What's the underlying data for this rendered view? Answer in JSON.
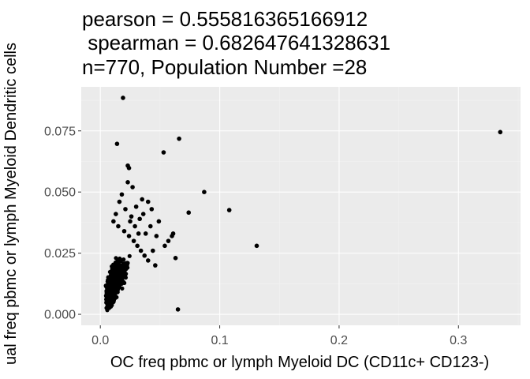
{
  "chart_data": {
    "type": "scatter",
    "title_lines": [
      "pearson = 0.555816365166912",
      " spearman = 0.682647641328631",
      "n=770, Population Number =28"
    ],
    "xlabel": "OC freq pbmc or lymph Myeloid DC (CD11c+ CD123-)",
    "ylabel": "ual freq pbmc or lymph Myeloid Dendritic cells",
    "xlim": [
      -0.016,
      0.352
    ],
    "ylim": [
      -0.0045,
      0.093
    ],
    "x_ticks": [
      0.0,
      0.1,
      0.2,
      0.3
    ],
    "x_tick_labels": [
      "0.0",
      "0.1",
      "0.2",
      "0.3"
    ],
    "y_ticks": [
      0.0,
      0.025,
      0.05,
      0.075
    ],
    "y_tick_labels": [
      "0.000",
      "0.025",
      "0.050",
      "0.075"
    ],
    "grid": true,
    "panel_color": "#ebebeb",
    "point_color": "#000000",
    "points": [
      [
        0.019,
        0.0885
      ],
      [
        0.335,
        0.0745
      ],
      [
        0.066,
        0.0718
      ],
      [
        0.014,
        0.0697
      ],
      [
        0.053,
        0.0662
      ],
      [
        0.023,
        0.0608
      ],
      [
        0.024,
        0.0598
      ],
      [
        0.087,
        0.05
      ],
      [
        0.108,
        0.0426
      ],
      [
        0.074,
        0.0416
      ],
      [
        0.131,
        0.028
      ],
      [
        0.065,
        0.002
      ],
      [
        0.023,
        0.054
      ],
      [
        0.027,
        0.052
      ],
      [
        0.035,
        0.047
      ],
      [
        0.04,
        0.046
      ],
      [
        0.03,
        0.044
      ],
      [
        0.043,
        0.043
      ],
      [
        0.049,
        0.038
      ],
      [
        0.061,
        0.033
      ],
      [
        0.063,
        0.023
      ],
      [
        0.054,
        0.028
      ],
      [
        0.057,
        0.03
      ],
      [
        0.06,
        0.032
      ],
      [
        0.047,
        0.032
      ],
      [
        0.042,
        0.036
      ],
      [
        0.036,
        0.041
      ],
      [
        0.033,
        0.039
      ],
      [
        0.018,
        0.049
      ],
      [
        0.016,
        0.046
      ],
      [
        0.021,
        0.043
      ],
      [
        0.026,
        0.04
      ],
      [
        0.013,
        0.041
      ],
      [
        0.011,
        0.038
      ],
      [
        0.015,
        0.036
      ],
      [
        0.02,
        0.034
      ],
      [
        0.024,
        0.032
      ],
      [
        0.028,
        0.03
      ],
      [
        0.031,
        0.028
      ],
      [
        0.034,
        0.026
      ],
      [
        0.037,
        0.024
      ],
      [
        0.04,
        0.022
      ],
      [
        0.044,
        0.026
      ],
      [
        0.046,
        0.02
      ],
      [
        0.038,
        0.033
      ],
      [
        0.032,
        0.033
      ],
      [
        0.029,
        0.036
      ],
      [
        0.025,
        0.038
      ]
    ],
    "dense_cluster": {
      "count": 722,
      "x_center": 0.012,
      "x_spread": 0.011,
      "y_slope": 0.75,
      "y_spread": 0.0075,
      "y_min": 0.0015
    }
  }
}
